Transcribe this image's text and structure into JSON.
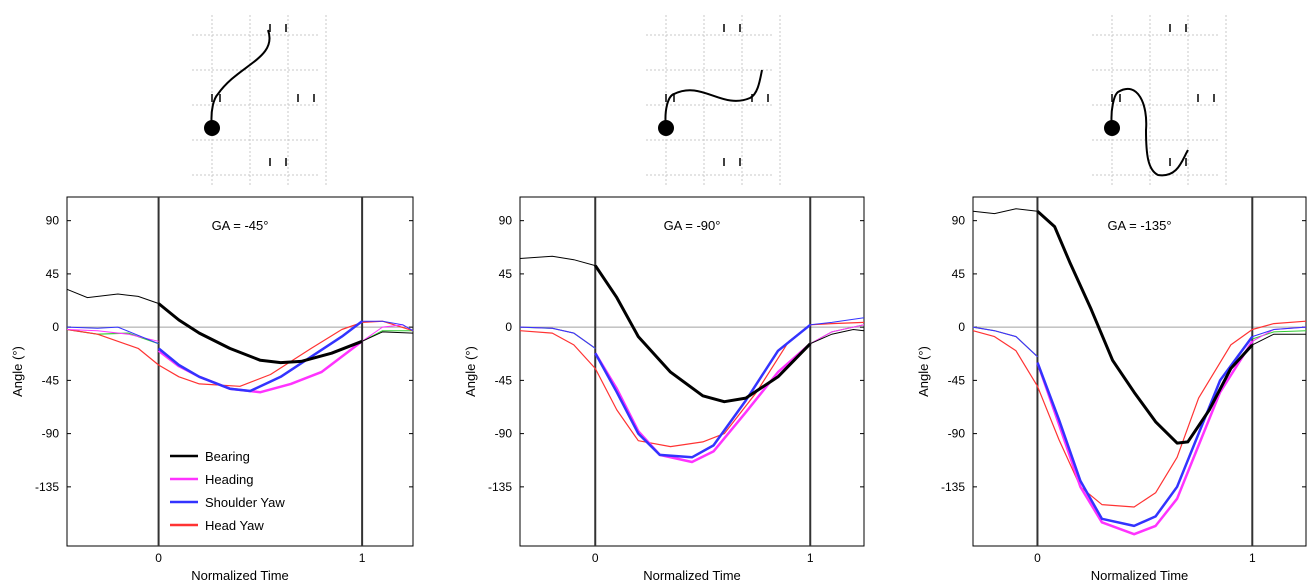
{
  "colors": {
    "bearing": "#000000",
    "heading": "#ff33ff",
    "shoulder_yaw": "#3333ff",
    "head_yaw": "#ff3333",
    "thin_green": "#33cc33",
    "zero_line": "#a0a0a0",
    "grid": "#c8c8c8"
  },
  "chart_data": [
    {
      "type": "line",
      "title": "GA = -45°",
      "xlabel": "Normalized Time",
      "ylabel": "Angle (°)",
      "xlim": [
        -0.45,
        1.25
      ],
      "ylim": [
        -185,
        110
      ],
      "xticks": [
        "0",
        "1"
      ],
      "yticks": [
        "90",
        "45",
        "0",
        "-45",
        "-90",
        "-135"
      ],
      "vlines": [
        0,
        1
      ],
      "legend": {
        "position": "lower-left",
        "entries": [
          "Bearing",
          "Heading",
          "Shoulder Yaw",
          "Head Yaw"
        ]
      },
      "series": [
        {
          "name": "Bearing",
          "color": "#000000",
          "pre": {
            "x": [
              -0.45,
              -0.35,
              -0.2,
              -0.1,
              0
            ],
            "y": [
              32,
              25,
              28,
              26,
              20
            ]
          },
          "x": [
            0,
            0.1,
            0.2,
            0.35,
            0.5,
            0.6,
            0.7,
            0.85,
            1.0
          ],
          "y": [
            20,
            6,
            -5,
            -18,
            -28,
            -30,
            -29,
            -22,
            -12
          ],
          "post": {
            "x": [
              1.0,
              1.1,
              1.25
            ],
            "y": [
              -12,
              -4,
              -5
            ]
          }
        },
        {
          "name": "Heading",
          "color": "#ff33ff",
          "pre": {
            "x": [
              -0.45,
              -0.3,
              -0.15,
              0
            ],
            "y": [
              -2,
              -3,
              -6,
              -12
            ]
          },
          "x": [
            0,
            0.1,
            0.2,
            0.35,
            0.5,
            0.65,
            0.8,
            1.0
          ],
          "y": [
            -20,
            -33,
            -42,
            -52,
            -55,
            -48,
            -38,
            -12
          ],
          "post": {
            "x": [
              1.0,
              1.1,
              1.2,
              1.25
            ],
            "y": [
              -12,
              0,
              2,
              -3
            ]
          }
        },
        {
          "name": "Shoulder Yaw",
          "color": "#3333ff",
          "pre": {
            "x": [
              -0.45,
              -0.3,
              -0.2,
              0
            ],
            "y": [
              0,
              -1,
              0,
              -14
            ]
          },
          "x": [
            0,
            0.1,
            0.2,
            0.35,
            0.45,
            0.6,
            0.75,
            0.9,
            1.0
          ],
          "y": [
            -18,
            -32,
            -42,
            -52,
            -54,
            -42,
            -25,
            -8,
            5
          ],
          "post": {
            "x": [
              1.0,
              1.1,
              1.2,
              1.25
            ],
            "y": [
              5,
              5,
              2,
              -3
            ]
          }
        },
        {
          "name": "Head Yaw",
          "color": "#ff3333",
          "x": [
            -0.45,
            -0.3,
            -0.1,
            0,
            0.1,
            0.2,
            0.4,
            0.55,
            0.75,
            0.9,
            1.0,
            1.1,
            1.25
          ],
          "y": [
            -2,
            -6,
            -18,
            -32,
            -42,
            -48,
            -50,
            -40,
            -18,
            -2,
            4,
            5,
            -3
          ]
        },
        {
          "name": "",
          "color": "#33cc33",
          "x": [
            -0.45,
            -0.3,
            -0.15,
            0
          ],
          "y": [
            -2,
            -6,
            -5,
            -14
          ],
          "post": {
            "x": [
              1.0,
              1.1,
              1.25
            ],
            "y": [
              -12,
              -3,
              -3
            ]
          }
        }
      ]
    },
    {
      "type": "line",
      "title": "GA = -90°",
      "xlabel": "Normalized Time",
      "ylabel": "Angle (°)",
      "xlim": [
        -0.35,
        1.25
      ],
      "ylim": [
        -185,
        110
      ],
      "xticks": [
        "0",
        "1"
      ],
      "yticks": [
        "90",
        "45",
        "0",
        "-45",
        "-90",
        "-135"
      ],
      "vlines": [
        0,
        1
      ],
      "series": [
        {
          "name": "Bearing",
          "color": "#000000",
          "pre": {
            "x": [
              -0.35,
              -0.2,
              -0.1,
              0
            ],
            "y": [
              58,
              60,
              57,
              52
            ]
          },
          "x": [
            0,
            0.1,
            0.2,
            0.35,
            0.5,
            0.6,
            0.7,
            0.85,
            1.0
          ],
          "y": [
            52,
            25,
            -8,
            -38,
            -58,
            -63,
            -60,
            -42,
            -14
          ],
          "post": {
            "x": [
              1.0,
              1.1,
              1.2,
              1.25
            ],
            "y": [
              -14,
              -6,
              -2,
              -3
            ]
          }
        },
        {
          "name": "Heading",
          "color": "#ff33ff",
          "pre": {
            "x": [
              -0.35,
              -0.2,
              -0.1,
              0
            ],
            "y": [
              0,
              -1,
              -5,
              -18
            ]
          },
          "x": [
            0,
            0.1,
            0.2,
            0.3,
            0.45,
            0.55,
            0.7,
            0.85,
            1.0
          ],
          "y": [
            -22,
            -52,
            -88,
            -108,
            -114,
            -105,
            -72,
            -38,
            -14
          ],
          "post": {
            "x": [
              1.0,
              1.1,
              1.25
            ],
            "y": [
              -14,
              -4,
              2
            ]
          }
        },
        {
          "name": "Shoulder Yaw",
          "color": "#3333ff",
          "pre": {
            "x": [
              -0.35,
              -0.2,
              -0.1,
              0
            ],
            "y": [
              0,
              -1,
              -5,
              -18
            ]
          },
          "x": [
            0,
            0.1,
            0.2,
            0.3,
            0.45,
            0.55,
            0.7,
            0.85,
            1.0
          ],
          "y": [
            -22,
            -55,
            -90,
            -108,
            -110,
            -100,
            -62,
            -20,
            2
          ],
          "post": {
            "x": [
              1.0,
              1.1,
              1.25
            ],
            "y": [
              2,
              4,
              8
            ]
          }
        },
        {
          "name": "Head Yaw",
          "color": "#ff3333",
          "x": [
            -0.35,
            -0.2,
            -0.1,
            0,
            0.1,
            0.2,
            0.35,
            0.5,
            0.6,
            0.75,
            0.9,
            1.0,
            1.1,
            1.25
          ],
          "y": [
            -3,
            -5,
            -15,
            -35,
            -70,
            -96,
            -101,
            -97,
            -90,
            -55,
            -12,
            2,
            3,
            4
          ]
        },
        {
          "name": "",
          "color": "#33cc33",
          "x": [
            -0.35,
            -0.2,
            -0.1,
            0
          ],
          "y": [
            0,
            -1,
            -5,
            -18
          ],
          "post": {
            "x": [
              1.0,
              1.1,
              1.25
            ],
            "y": [
              -14,
              -4,
              2
            ]
          }
        }
      ]
    },
    {
      "type": "line",
      "title": "GA = -135°",
      "xlabel": "Normalized Time",
      "ylabel": "Angle (°)",
      "xlim": [
        -0.3,
        1.25
      ],
      "ylim": [
        -185,
        110
      ],
      "xticks": [
        "0",
        "1"
      ],
      "yticks": [
        "90",
        "45",
        "0",
        "-45",
        "-90",
        "-135"
      ],
      "vlines": [
        0,
        1
      ],
      "series": [
        {
          "name": "Bearing",
          "color": "#000000",
          "pre": {
            "x": [
              -0.3,
              -0.2,
              -0.1,
              0
            ],
            "y": [
              98,
              96,
              100,
              98
            ]
          },
          "x": [
            0,
            0.08,
            0.15,
            0.25,
            0.35,
            0.45,
            0.55,
            0.65,
            0.7,
            0.8,
            0.9,
            1.0
          ],
          "y": [
            98,
            85,
            55,
            15,
            -28,
            -55,
            -80,
            -98,
            -97,
            -70,
            -35,
            -15
          ],
          "post": {
            "x": [
              1.0,
              1.1,
              1.25
            ],
            "y": [
              -15,
              -6,
              -6
            ]
          }
        },
        {
          "name": "Heading",
          "color": "#ff33ff",
          "pre": {
            "x": [
              -0.3,
              -0.2,
              -0.1,
              0
            ],
            "y": [
              0,
              -3,
              -8,
              -25
            ]
          },
          "x": [
            0,
            0.1,
            0.2,
            0.3,
            0.45,
            0.55,
            0.65,
            0.75,
            0.85,
            1.0
          ],
          "y": [
            -30,
            -82,
            -135,
            -165,
            -175,
            -168,
            -145,
            -100,
            -55,
            -12
          ],
          "post": {
            "x": [
              1.0,
              1.1,
              1.25
            ],
            "y": [
              -12,
              -2,
              0
            ]
          }
        },
        {
          "name": "Shoulder Yaw",
          "color": "#3333ff",
          "pre": {
            "x": [
              -0.3,
              -0.2,
              -0.1,
              0
            ],
            "y": [
              0,
              -3,
              -8,
              -25
            ]
          },
          "x": [
            0,
            0.1,
            0.2,
            0.3,
            0.45,
            0.55,
            0.65,
            0.75,
            0.85,
            1.0
          ],
          "y": [
            -30,
            -78,
            -130,
            -162,
            -168,
            -160,
            -135,
            -90,
            -45,
            -8
          ],
          "post": {
            "x": [
              1.0,
              1.1,
              1.25
            ],
            "y": [
              -8,
              -2,
              0
            ]
          }
        },
        {
          "name": "Head Yaw",
          "color": "#ff3333",
          "x": [
            -0.3,
            -0.2,
            -0.1,
            0,
            0.1,
            0.2,
            0.3,
            0.45,
            0.55,
            0.65,
            0.75,
            0.9,
            1.0,
            1.1,
            1.25
          ],
          "y": [
            -3,
            -8,
            -20,
            -50,
            -95,
            -135,
            -150,
            -152,
            -140,
            -110,
            -60,
            -15,
            -2,
            3,
            5
          ]
        },
        {
          "name": "",
          "color": "#33cc33",
          "x": [
            -0.3,
            -0.2,
            -0.1,
            0
          ],
          "y": [
            0,
            -3,
            -8,
            -25
          ],
          "post": {
            "x": [
              1.0,
              1.1,
              1.25
            ],
            "y": [
              -10,
              -4,
              -3
            ]
          }
        }
      ]
    }
  ]
}
